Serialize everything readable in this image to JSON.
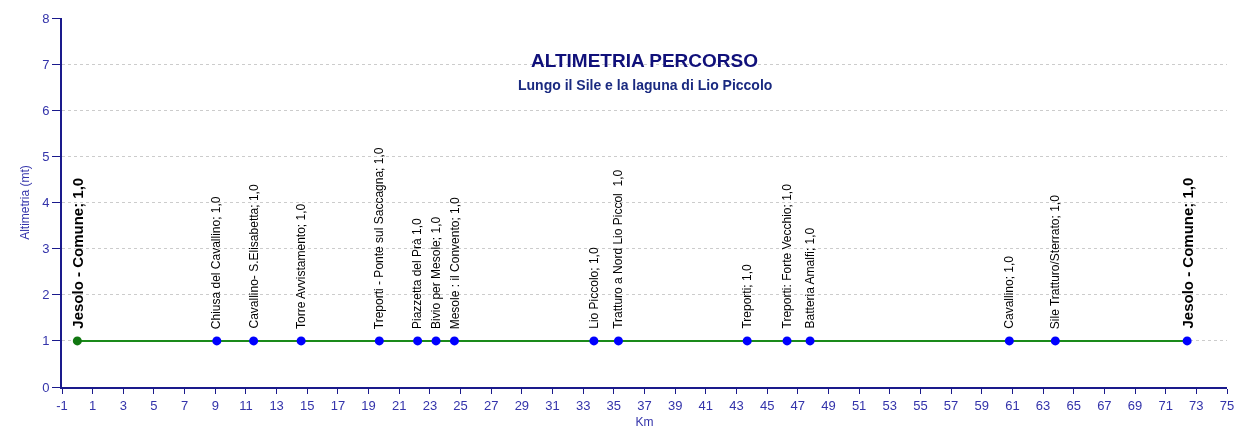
{
  "chart_data": {
    "type": "line",
    "title": "ALTIMETRIA PERCORSO",
    "subtitle": "Lungo il Sile e la laguna di Lio Piccolo",
    "xlabel": "Km",
    "ylabel": "Altimetria (mt)",
    "x": [
      0,
      9.1,
      11.5,
      14.6,
      19.7,
      22.2,
      23.4,
      24.6,
      33.7,
      35.3,
      43.7,
      46.3,
      47.8,
      60.8,
      63.8,
      72.4
    ],
    "series": [
      {
        "color": "#1a8a1a",
        "colors": [
          "#117711",
          "#0000ff",
          "#0000ff",
          "#0000ff",
          "#0000ff",
          "#0000ff",
          "#0000ff",
          "#0000ff",
          "#0000ff",
          "#0000ff",
          "#0000ff",
          "#0000ff",
          "#0000ff",
          "#0000ff",
          "#0000ff",
          "#0000ff"
        ],
        "values": [
          1,
          1,
          1,
          1,
          1,
          1,
          1,
          1,
          1,
          1,
          1,
          1,
          1,
          1,
          1,
          1
        ],
        "value_labels": [
          "Jesolo - Comune; 1,0",
          "Chiusa del Cavallino; 1,0",
          "Cavallino- S.Elisabetta; 1,0",
          "Torre Avvistamento; 1,0",
          "Treporti - Ponte sul Saccagna; 1,0",
          "Piazzetta del Prà 1,0",
          "Bivio per Mesole; 1,0",
          "Mesole : il Convento; 1,0",
          "Lio Piccolo; 1,0",
          "Tratturo a Nord Lio Piccol  1,0",
          "Treporti; 1,0",
          "Treporti: Forte Vecchio; 1,0",
          "Batteria Amalfi; 1,0",
          "Cavallino; 1,0",
          "Sile Tratturo/Sterrato; 1,0",
          "Jesolo - Comune; 1,0"
        ]
      }
    ],
    "xlim": [
      -1,
      75
    ],
    "xticks": [
      -1,
      1,
      3,
      5,
      7,
      9,
      11,
      13,
      15,
      17,
      19,
      21,
      23,
      25,
      27,
      29,
      31,
      33,
      35,
      37,
      39,
      41,
      43,
      45,
      47,
      49,
      51,
      53,
      55,
      57,
      59,
      61,
      63,
      65,
      67,
      69,
      71,
      73,
      75
    ],
    "ylim": [
      0,
      8
    ],
    "yticks": [
      0,
      1,
      2,
      3,
      4,
      5,
      6,
      7,
      8
    ],
    "grid": "y",
    "marker": "circle",
    "line_style": "solid"
  }
}
